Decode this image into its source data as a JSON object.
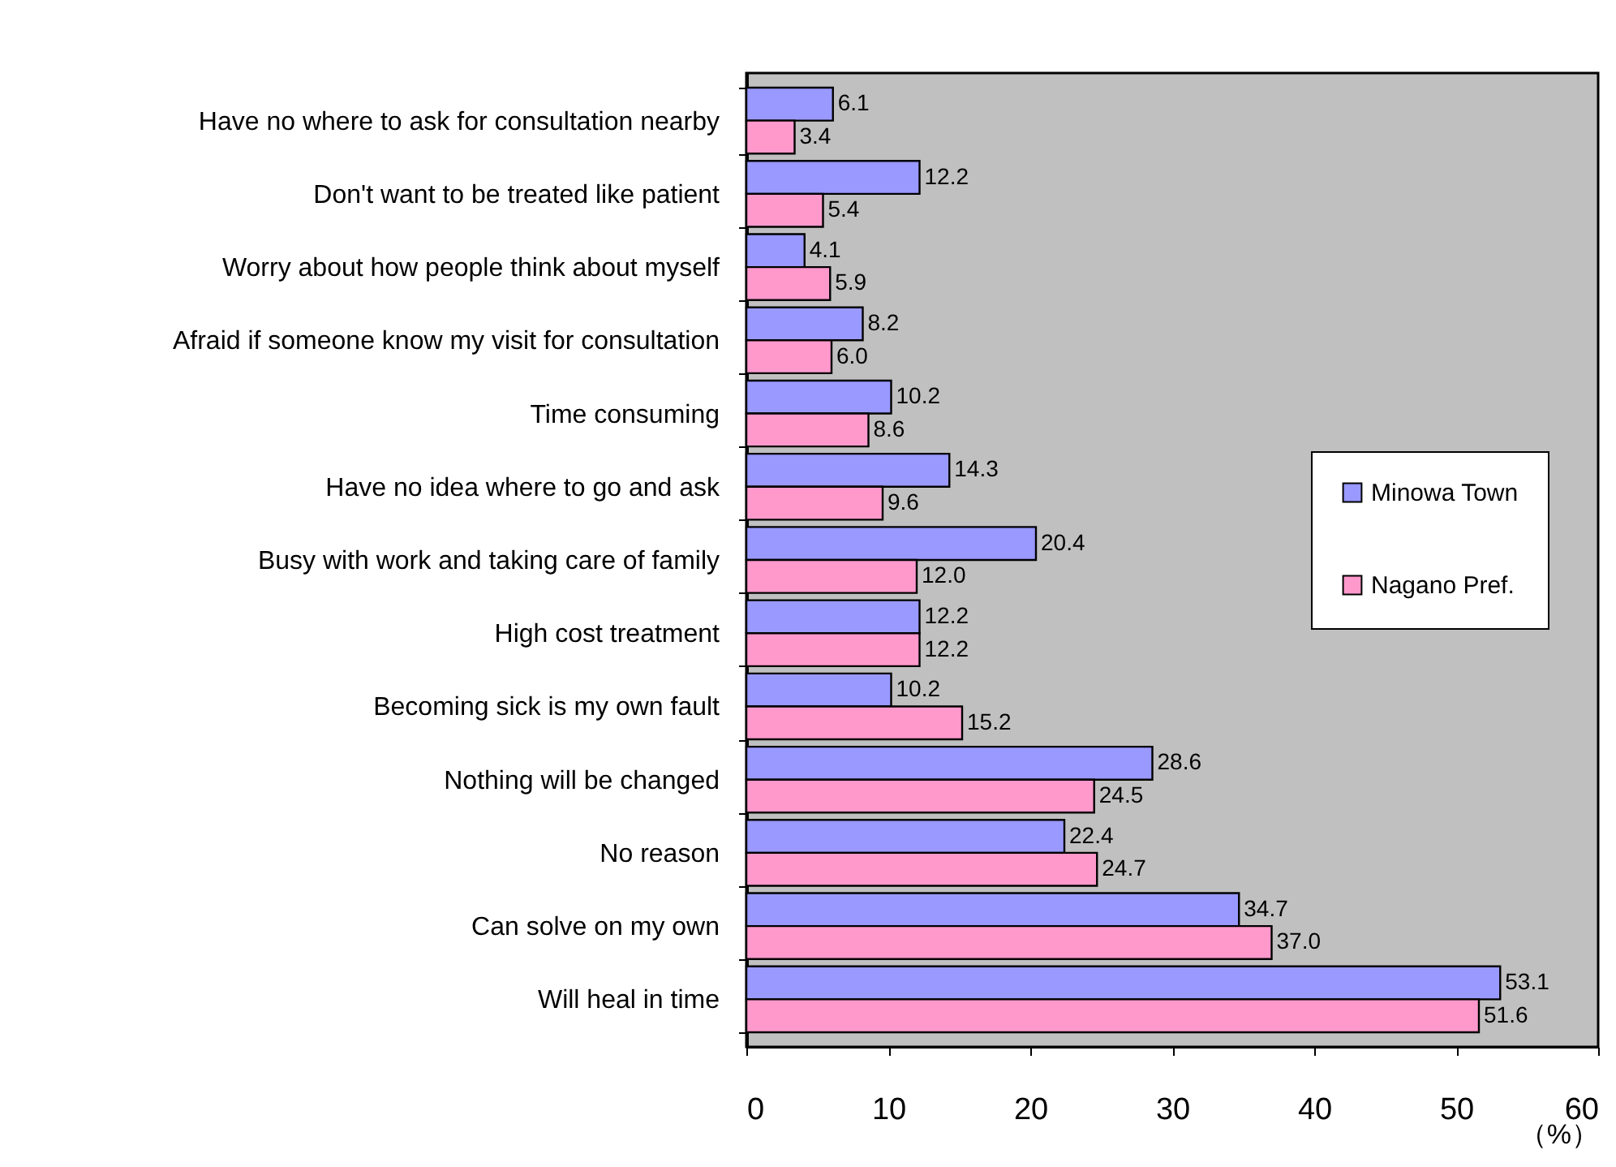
{
  "chart_data": {
    "type": "bar",
    "orientation": "horizontal",
    "xlabel": "（%）",
    "categories": [
      "Have no where to ask for consultation nearby",
      "Don't want to be treated like patient",
      "Worry about how people think about myself",
      "Afraid if someone know my visit for consultation",
      "Time consuming",
      "Have no idea where to go and ask",
      "Busy with work and taking care of family",
      "High cost treatment",
      "Becoming sick is my own fault",
      "Nothing will be changed",
      "No reason",
      "Can solve on my own",
      "Will heal in time"
    ],
    "series": [
      {
        "name": "Minowa Town",
        "color": "#9999ff",
        "values": [
          6.1,
          12.2,
          4.1,
          8.2,
          10.2,
          14.3,
          20.4,
          12.2,
          10.2,
          28.6,
          22.4,
          34.7,
          53.1
        ],
        "value_labels": [
          "6.1",
          "12.2",
          "4.1",
          "8.2",
          "10.2",
          "14.3",
          "20.4",
          "12.2",
          "10.2",
          "28.6",
          "22.4",
          "34.7",
          "53.1"
        ]
      },
      {
        "name": "Nagano Pref.",
        "color": "#ff99cc",
        "values": [
          3.4,
          5.4,
          5.9,
          6.0,
          8.6,
          9.6,
          12.0,
          12.2,
          15.2,
          24.5,
          24.7,
          37.0,
          51.6
        ],
        "value_labels": [
          "3.4",
          "5.4",
          "5.9",
          "6.0",
          "8.6",
          "9.6",
          "12.0",
          "12.2",
          "15.2",
          "24.5",
          "24.7",
          "37.0",
          "51.6"
        ]
      }
    ],
    "xlim": [
      0,
      60
    ],
    "xticks": [
      0,
      10,
      20,
      30,
      40,
      50,
      60
    ],
    "legend": "right",
    "grid": false
  }
}
